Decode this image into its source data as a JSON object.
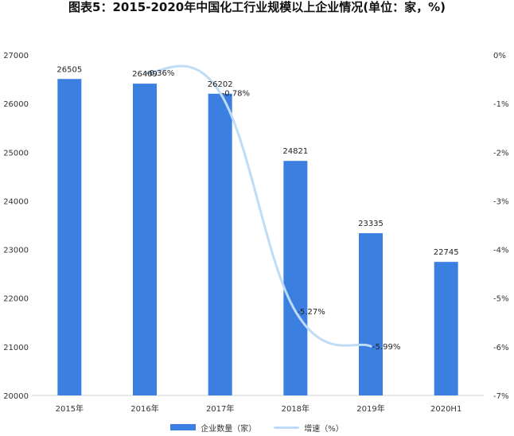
{
  "title": "图表5：2015-2020年中国化工行业规模以上企业情况(单位：家，%)",
  "chart_data": {
    "type": "bar+line",
    "categories": [
      "2015年",
      "2016年",
      "2017年",
      "2018年",
      "2019年",
      "2020H1"
    ],
    "series": [
      {
        "name": "企业数量（家）",
        "type": "bar",
        "axis": "left",
        "values": [
          26505,
          26409,
          26202,
          24821,
          23335,
          22745
        ]
      },
      {
        "name": "增速（%）",
        "type": "line",
        "axis": "right",
        "values": [
          null,
          -0.36,
          -0.78,
          -5.27,
          -5.99,
          null
        ]
      }
    ],
    "bar_labels": [
      "26505",
      "26409",
      "26202",
      "24821",
      "23335",
      "22745"
    ],
    "line_labels": [
      null,
      "-0.36%",
      "-0.78%",
      "-5.27%",
      "-5.99%",
      null
    ],
    "y_left": {
      "min": 20000,
      "max": 27000,
      "ticks": [
        "20000",
        "21000",
        "22000",
        "23000",
        "24000",
        "25000",
        "26000",
        "27000"
      ]
    },
    "y_right": {
      "min": -7,
      "max": 0,
      "ticks": [
        "0%",
        "-1%",
        "-2%",
        "-3%",
        "-4%",
        "-5%",
        "-6%",
        "-7%"
      ]
    },
    "bar_color": "#3b80e0",
    "line_color": "#bedcf6",
    "legend_position": "bottom"
  },
  "legend": {
    "bar_label": "企业数量（家）",
    "line_label": "增速（%）"
  }
}
